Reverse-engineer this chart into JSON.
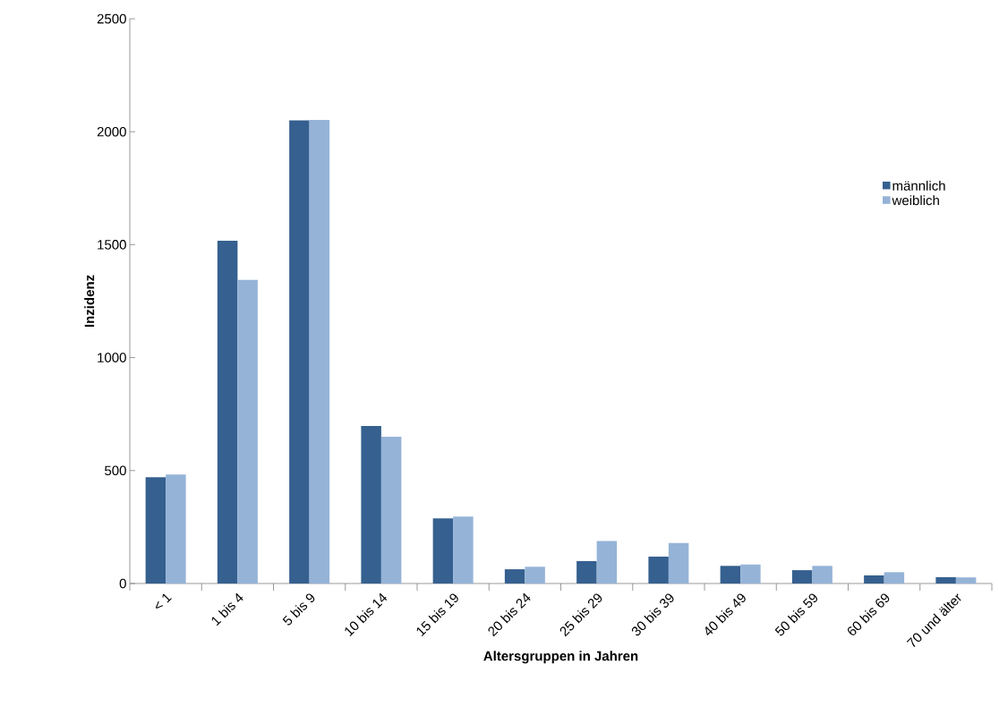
{
  "chart_data": {
    "type": "bar",
    "xlabel": "Altersgruppen in Jahren",
    "ylabel": "Inzidenz",
    "categories": [
      "< 1",
      "1 bis 4",
      "5 bis 9",
      "10 bis 14",
      "15 bis 19",
      "20 bis 24",
      "25 bis 29",
      "30 bis 39",
      "40 bis 49",
      "50 bis 59",
      "60 bis 69",
      "70 und älter"
    ],
    "series": [
      {
        "name": "männlich",
        "color": "#35608f",
        "values": [
          470,
          1517,
          2050,
          697,
          288,
          63,
          99,
          119,
          78,
          59,
          36,
          28
        ]
      },
      {
        "name": "weiblich",
        "color": "#95b3d7",
        "values": [
          482,
          1344,
          2052,
          650,
          296,
          74,
          188,
          179,
          84,
          78,
          50,
          27
        ]
      }
    ],
    "ylim": [
      0,
      2500
    ],
    "yticks": [
      0,
      500,
      1000,
      1500,
      2000,
      2500
    ],
    "grid": false,
    "legend": "right"
  }
}
